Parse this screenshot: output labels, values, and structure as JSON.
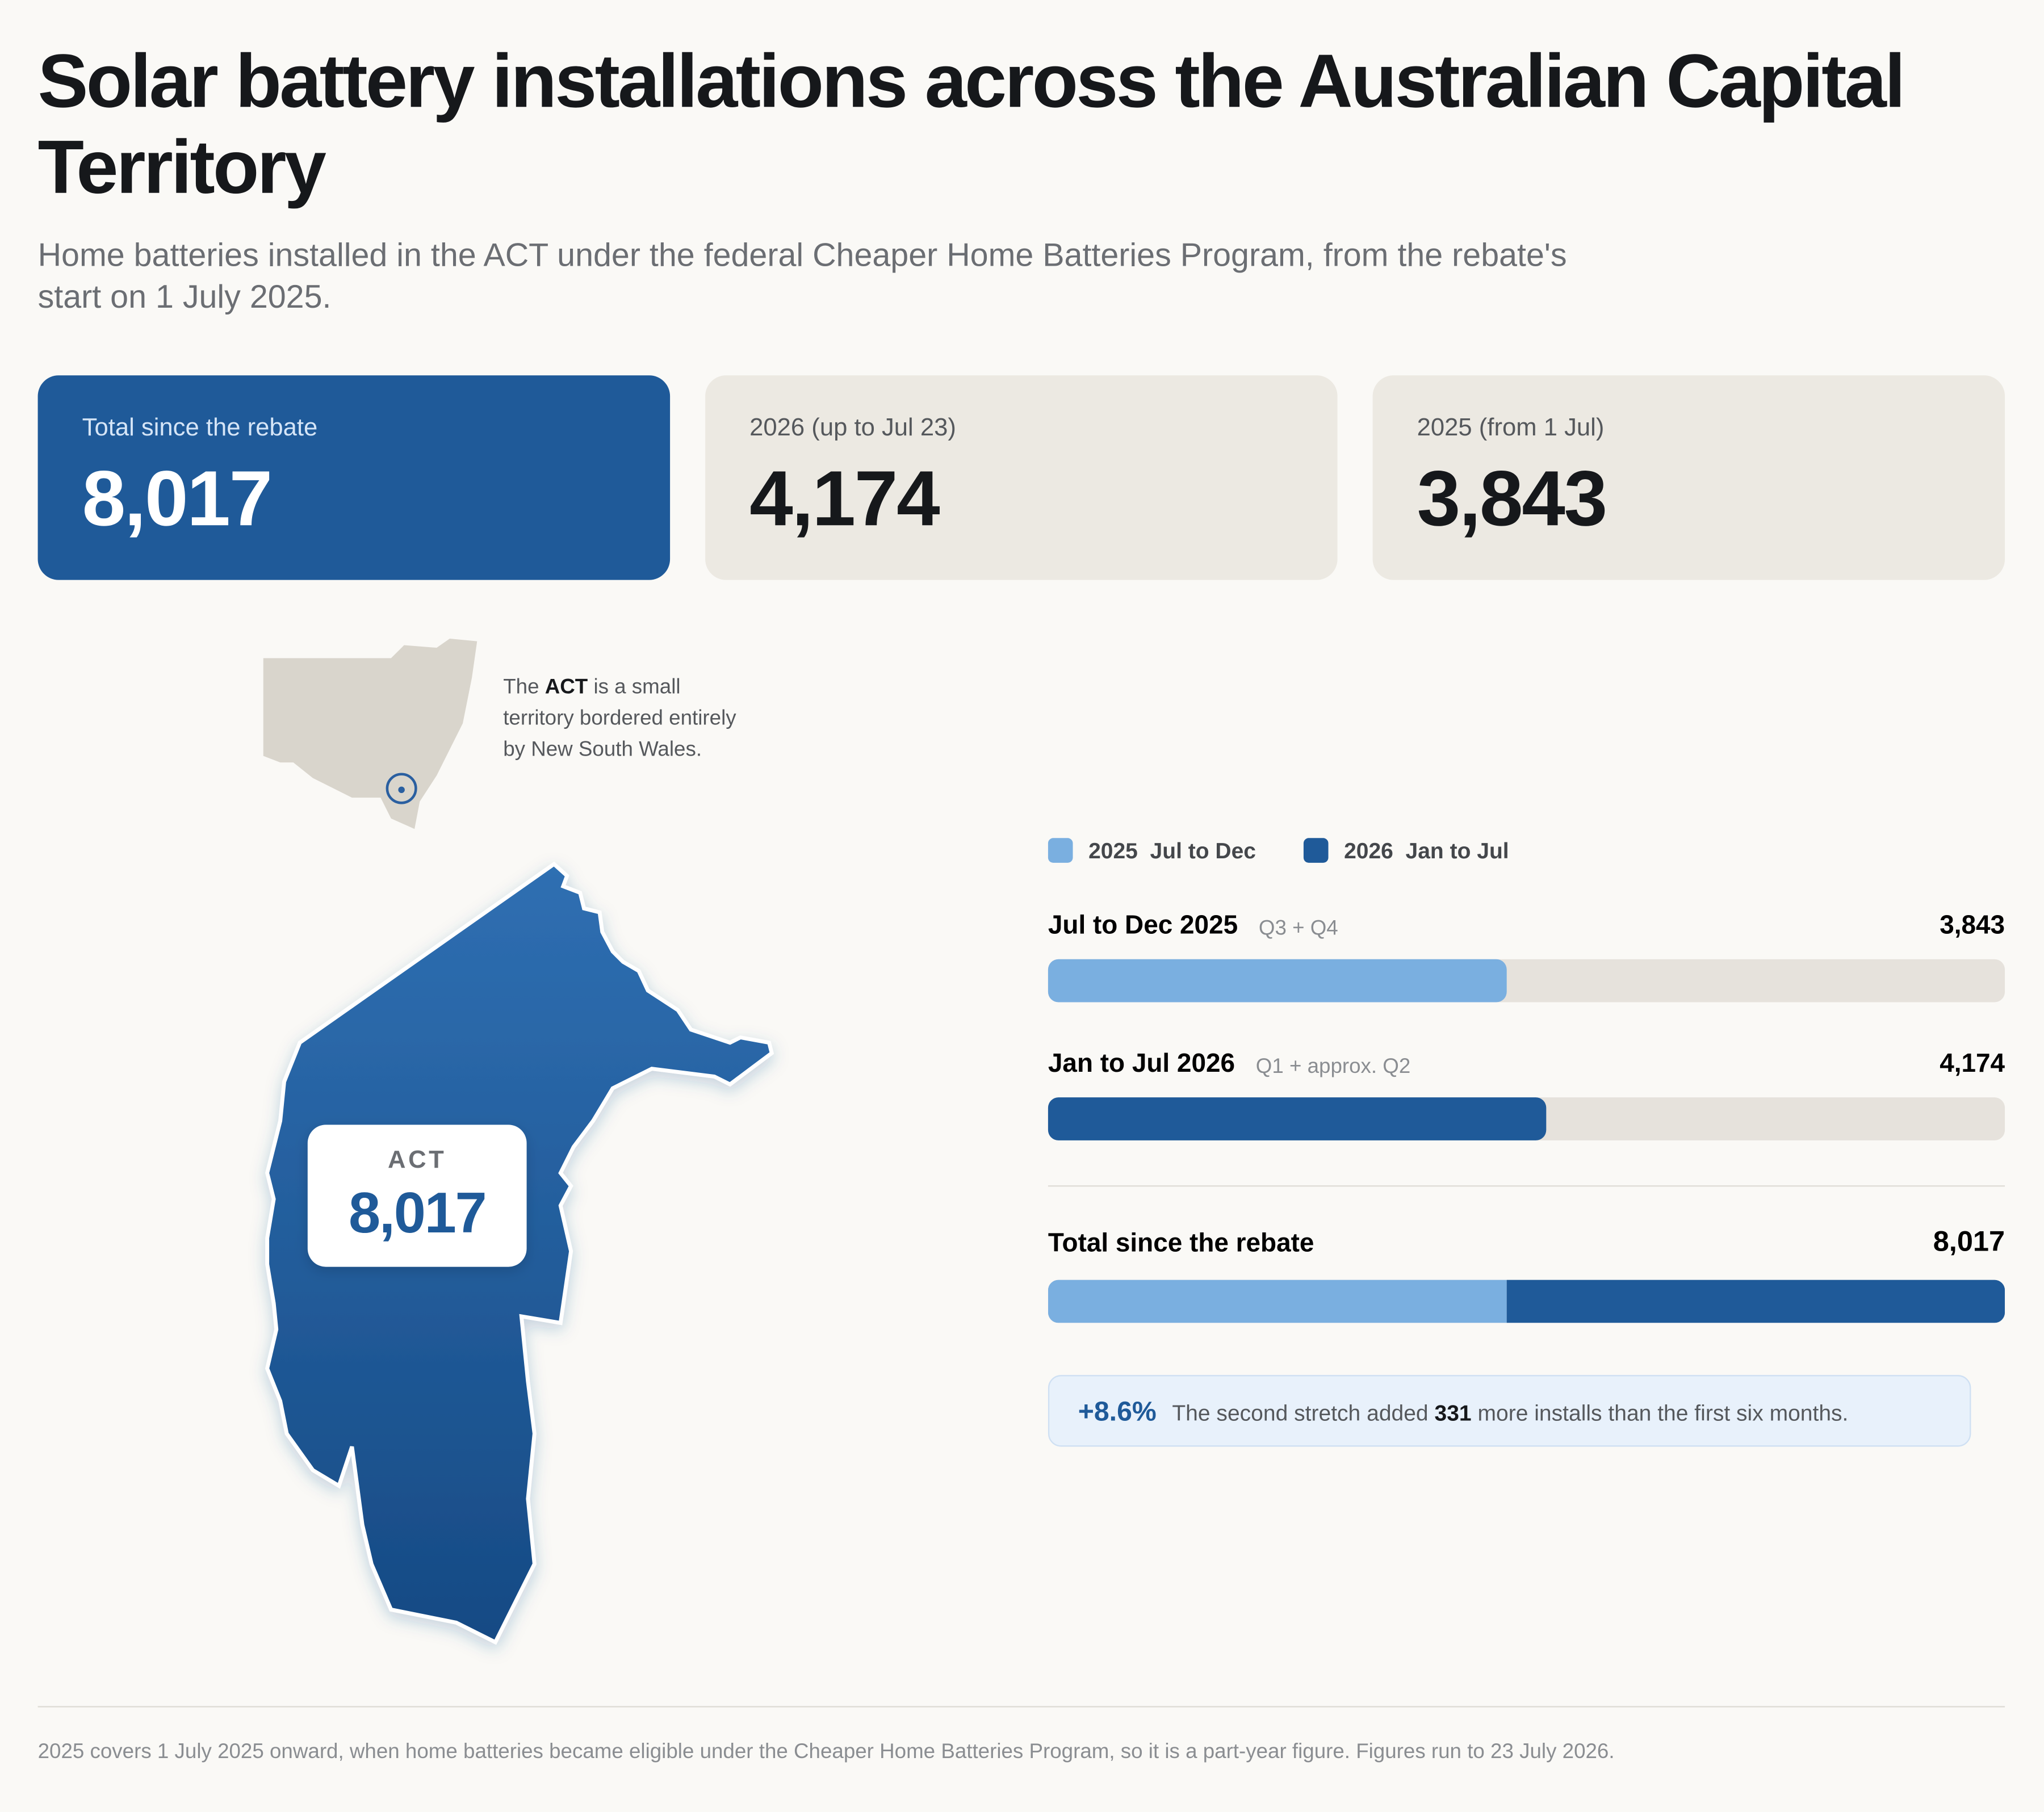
{
  "header": {
    "title": "Solar battery installations across the Australian Capital Territory",
    "subtitle": "Home batteries installed in the ACT under the federal Cheaper Home Batteries Program, from the rebate's start on 1 July 2025."
  },
  "cards": [
    {
      "label": "Total since the rebate",
      "value": "8,017"
    },
    {
      "label": "2026 (up to Jul 23)",
      "value": "4,174"
    },
    {
      "label": "2025 (from 1 Jul)",
      "value": "3,843"
    }
  ],
  "map": {
    "note": [
      "The ",
      "ACT",
      " is a small territory bordered entirely by New South Wales."
    ],
    "region_label": "ACT",
    "region_value": "8,017"
  },
  "chart_data": {
    "type": "bar",
    "orientation": "horizontal",
    "legend": [
      {
        "label": "2025  Jul to Dec",
        "color": "#7aafe0"
      },
      {
        "label": "2026  Jan to Jul",
        "color": "#1f5a99"
      }
    ],
    "categories": [
      "Jul to Dec 2025",
      "Jan to Jul 2026"
    ],
    "category_notes": [
      "Q3 + Q4",
      "Q1 + approx. Q2"
    ],
    "values": [
      3843,
      4174
    ],
    "value_labels": [
      "3,843",
      "4,174"
    ],
    "colors": [
      "#7aafe0",
      "#1f5a99"
    ],
    "total": {
      "label": "Total since the rebate",
      "value": 8017,
      "value_label": "8,017"
    },
    "xlim": [
      0,
      8017
    ]
  },
  "callout": {
    "change": "+8.6%",
    "text": [
      "The second stretch added ",
      "331",
      " more installs than the first six months."
    ]
  },
  "footer": "2025 covers 1 July 2025 onward, when home batteries became eligible under the Cheaper Home Batteries Program, so it is a part-year figure. Figures run to 23 July 2026."
}
